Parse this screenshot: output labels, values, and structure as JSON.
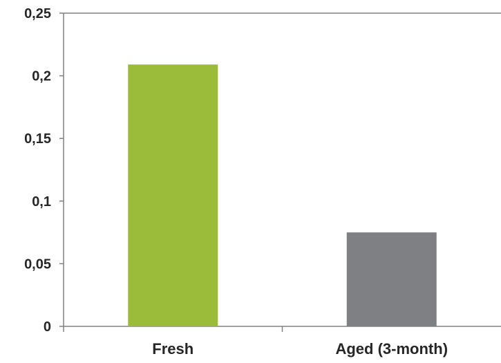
{
  "chart_data": {
    "type": "bar",
    "title": "",
    "xlabel": "",
    "ylabel": "",
    "categories": [
      "Fresh",
      "Aged (3-month)"
    ],
    "values": [
      0.209,
      0.075
    ],
    "ylim": [
      0,
      0.25
    ],
    "yticks": [
      0,
      0.05,
      0.1,
      0.15,
      0.2,
      0.25
    ],
    "ytick_labels": [
      "0",
      "0,05",
      "0,1",
      "0,15",
      "0,2",
      "0,25"
    ],
    "bar_colors": [
      "#9BBB3B",
      "#7F8083"
    ],
    "axis_color": "#808080",
    "grid": false,
    "legend": "none"
  }
}
